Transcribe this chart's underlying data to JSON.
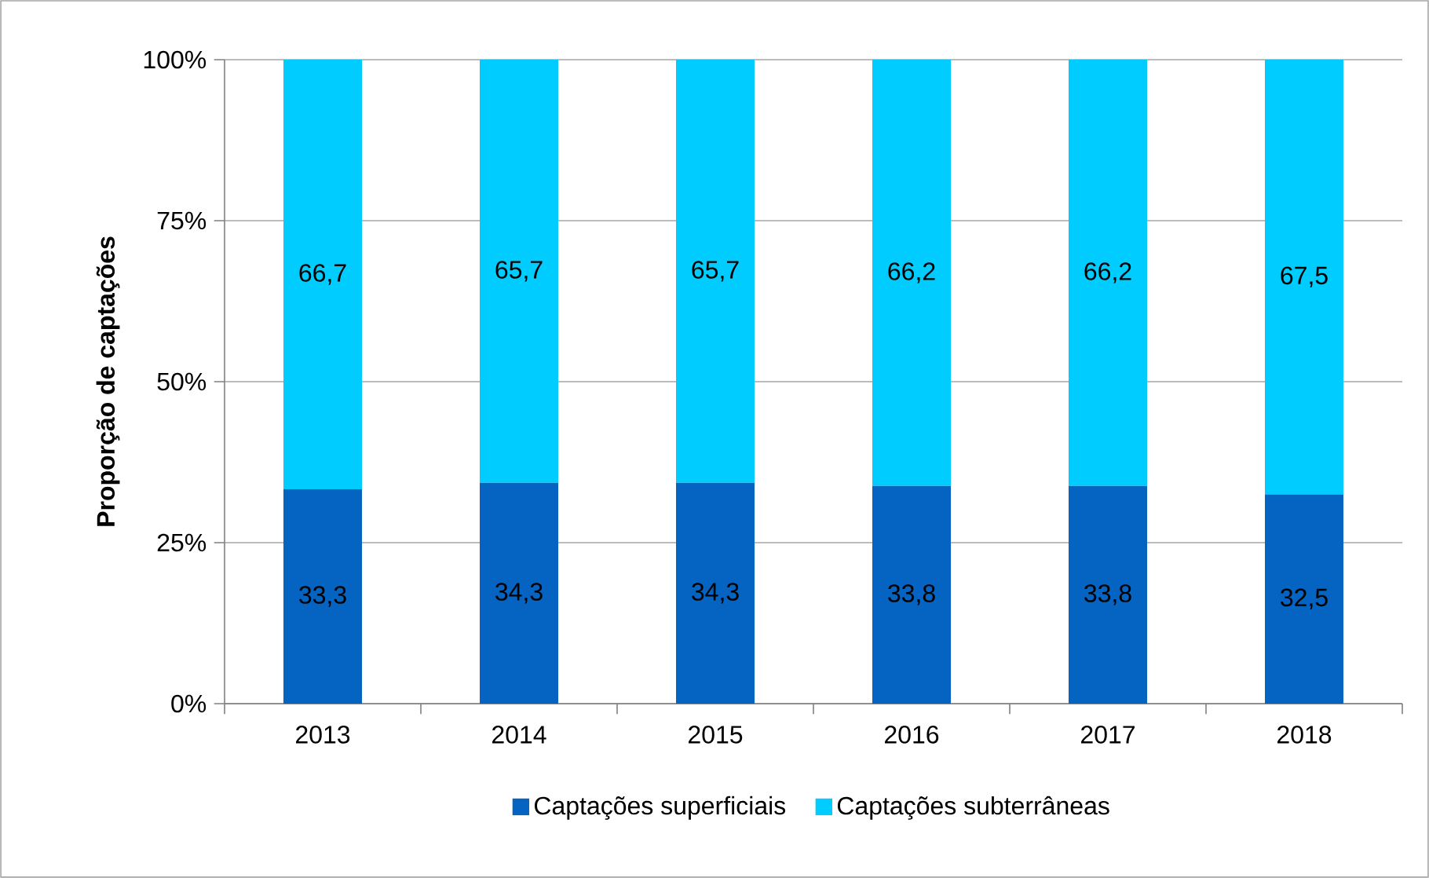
{
  "chart_data": {
    "type": "bar",
    "stacked": true,
    "ylabel": "Proporção de captações",
    "categories": [
      "2013",
      "2014",
      "2015",
      "2016",
      "2017",
      "2018"
    ],
    "series": [
      {
        "name": "Captações superficiais",
        "color": "#0563c1",
        "values": [
          33.3,
          34.3,
          34.3,
          33.8,
          33.8,
          32.5
        ],
        "value_labels": [
          "33,3",
          "34,3",
          "34,3",
          "33,8",
          "33,8",
          "32,5"
        ]
      },
      {
        "name": "Captações subterrâneas",
        "color": "#00ccff",
        "values": [
          66.7,
          65.7,
          65.7,
          66.2,
          66.2,
          67.5
        ],
        "value_labels": [
          "66,7",
          "65,7",
          "65,7",
          "66,2",
          "66,2",
          "67,5"
        ]
      }
    ],
    "ylim": [
      0,
      100
    ],
    "yticks": [
      {
        "value": 0,
        "label": "0%"
      },
      {
        "value": 25,
        "label": "25%"
      },
      {
        "value": 50,
        "label": "50%"
      },
      {
        "value": 75,
        "label": "75%"
      },
      {
        "value": 100,
        "label": "100%"
      }
    ],
    "grid": "y",
    "legend": "bottom"
  }
}
